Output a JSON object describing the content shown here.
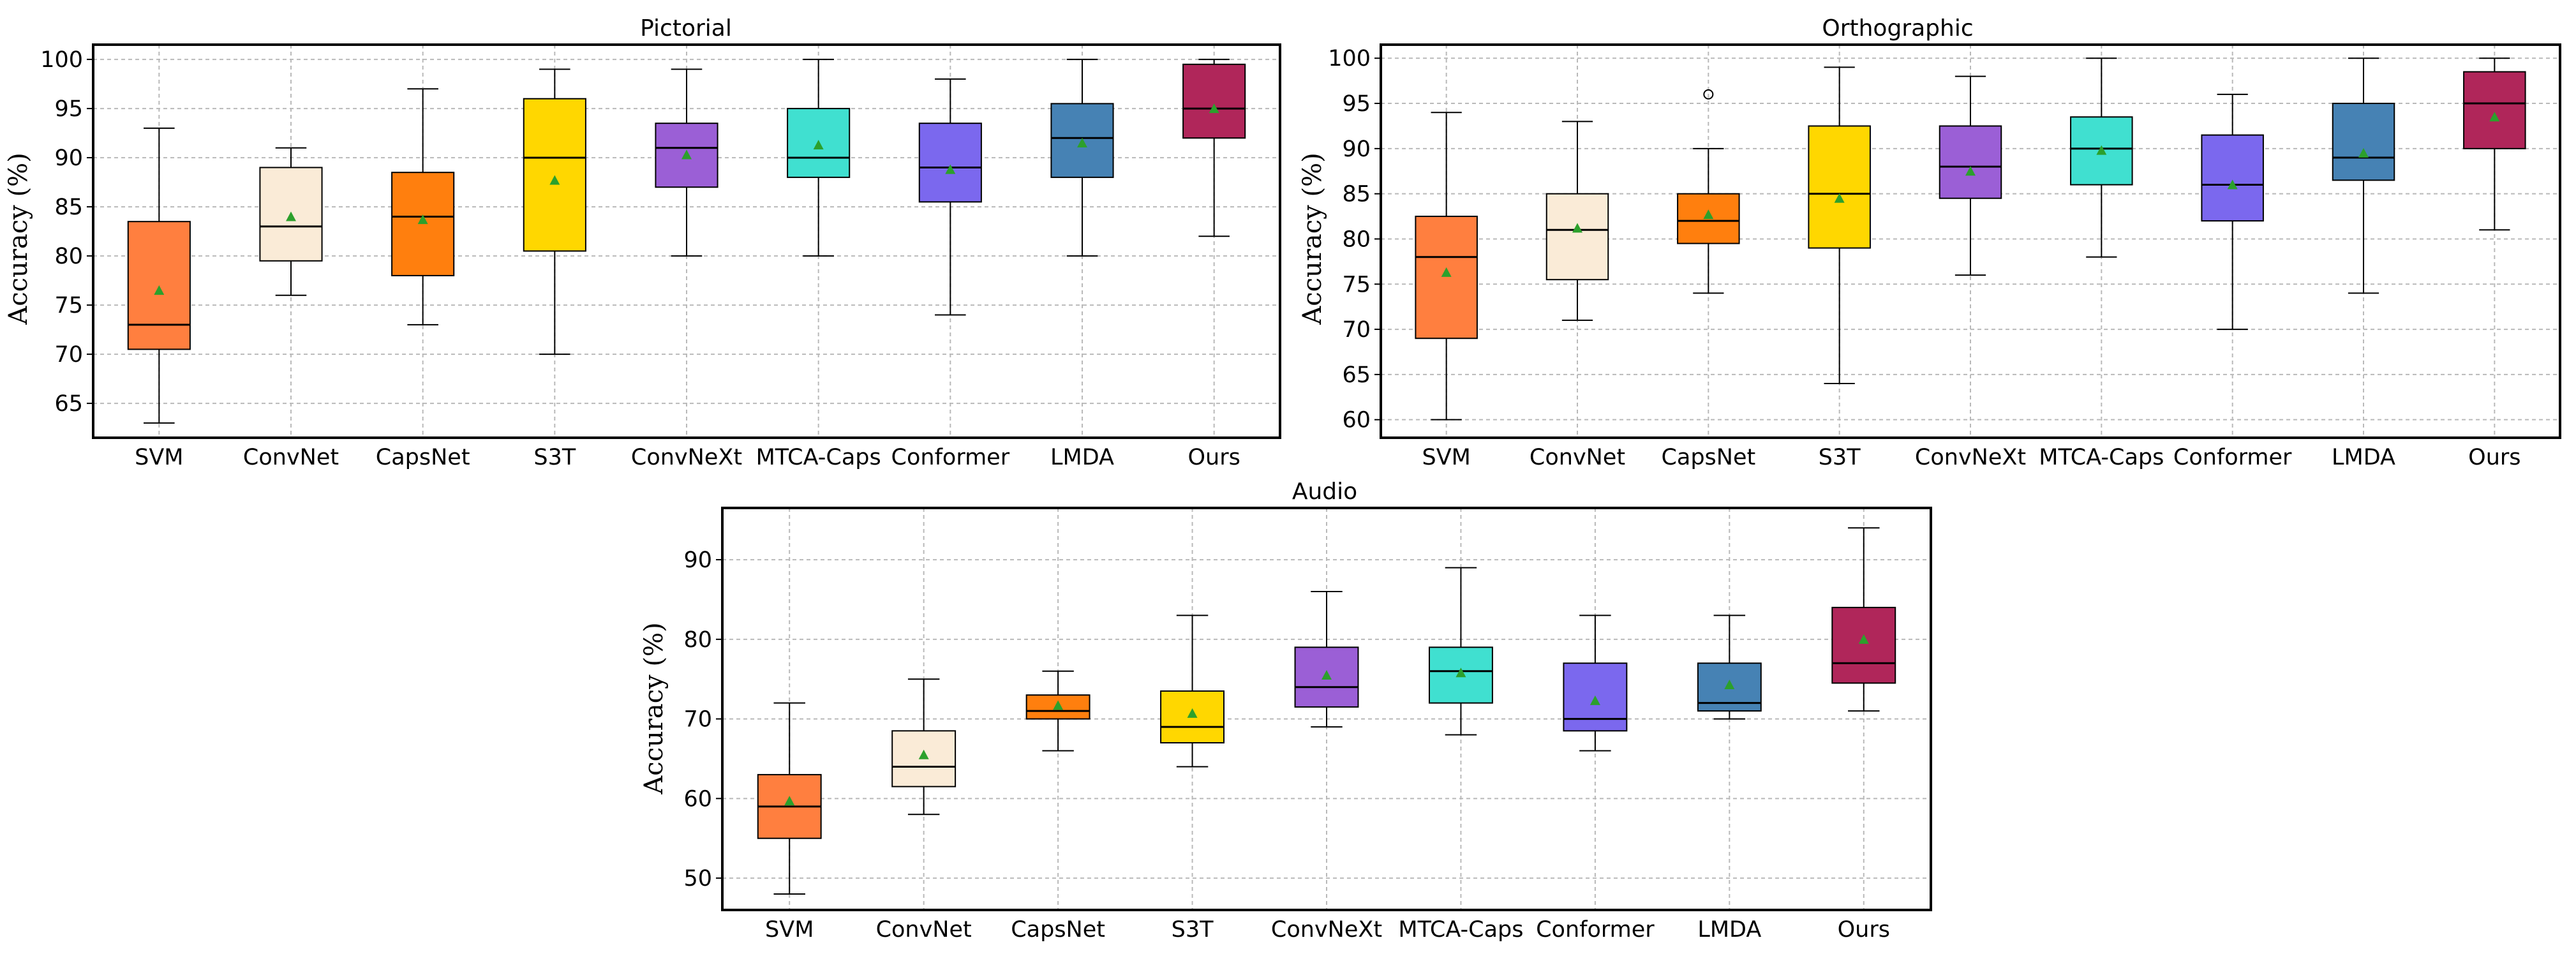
{
  "chart_data": [
    {
      "type": "box",
      "title": "Pictorial",
      "ylabel": "Accuracy (%)",
      "ylim": [
        61.5,
        101.5
      ],
      "yticks": [
        65,
        70,
        75,
        80,
        85,
        90,
        95,
        100
      ],
      "grid": true,
      "categories": [
        "SVM",
        "ConvNet",
        "CapsNet",
        "S3T",
        "ConvNeXt",
        "MTCA-Caps",
        "Conformer",
        "LMDA",
        "Ours"
      ],
      "boxes": [
        {
          "whislo": 63,
          "q1": 70.5,
          "med": 73,
          "q3": 83.5,
          "whishi": 93,
          "mean": 76.5,
          "fliers": []
        },
        {
          "whislo": 76,
          "q1": 79.5,
          "med": 83,
          "q3": 89,
          "whishi": 91,
          "mean": 84,
          "fliers": []
        },
        {
          "whislo": 73,
          "q1": 78,
          "med": 84,
          "q3": 88.5,
          "whishi": 97,
          "mean": 83.7,
          "fliers": []
        },
        {
          "whislo": 70,
          "q1": 80.5,
          "med": 90,
          "q3": 96,
          "whishi": 99,
          "mean": 87.7,
          "fliers": []
        },
        {
          "whislo": 80,
          "q1": 87,
          "med": 91,
          "q3": 93.5,
          "whishi": 99,
          "mean": 90.3,
          "fliers": []
        },
        {
          "whislo": 80,
          "q1": 88,
          "med": 90,
          "q3": 95,
          "whishi": 100,
          "mean": 91.3,
          "fliers": []
        },
        {
          "whislo": 74,
          "q1": 85.5,
          "med": 89,
          "q3": 93.5,
          "whishi": 98,
          "mean": 88.8,
          "fliers": []
        },
        {
          "whislo": 80,
          "q1": 88,
          "med": 92,
          "q3": 95.5,
          "whishi": 100,
          "mean": 91.5,
          "fliers": []
        },
        {
          "whislo": 82,
          "q1": 92,
          "med": 95,
          "q3": 99.5,
          "whishi": 100,
          "mean": 95,
          "fliers": []
        }
      ]
    },
    {
      "type": "box",
      "title": "Orthographic",
      "ylabel": "Accuracy (%)",
      "ylim": [
        58,
        101.5
      ],
      "yticks": [
        60,
        65,
        70,
        75,
        80,
        85,
        90,
        95,
        100
      ],
      "grid": true,
      "categories": [
        "SVM",
        "ConvNet",
        "CapsNet",
        "S3T",
        "ConvNeXt",
        "MTCA-Caps",
        "Conformer",
        "LMDA",
        "Ours"
      ],
      "boxes": [
        {
          "whislo": 60,
          "q1": 69,
          "med": 78,
          "q3": 82.5,
          "whishi": 94,
          "mean": 76.3,
          "fliers": []
        },
        {
          "whislo": 71,
          "q1": 75.5,
          "med": 81,
          "q3": 85,
          "whishi": 93,
          "mean": 81.2,
          "fliers": []
        },
        {
          "whislo": 74,
          "q1": 79.5,
          "med": 82,
          "q3": 85,
          "whishi": 90,
          "mean": 82.7,
          "fliers": [
            96
          ]
        },
        {
          "whislo": 64,
          "q1": 79,
          "med": 85,
          "q3": 92.5,
          "whishi": 99,
          "mean": 84.5,
          "fliers": []
        },
        {
          "whislo": 76,
          "q1": 84.5,
          "med": 88,
          "q3": 92.5,
          "whishi": 98,
          "mean": 87.5,
          "fliers": []
        },
        {
          "whislo": 78,
          "q1": 86,
          "med": 90,
          "q3": 93.5,
          "whishi": 100,
          "mean": 89.8,
          "fliers": []
        },
        {
          "whislo": 70,
          "q1": 82,
          "med": 86,
          "q3": 91.5,
          "whishi": 96,
          "mean": 86,
          "fliers": []
        },
        {
          "whislo": 74,
          "q1": 86.5,
          "med": 89,
          "q3": 95,
          "whishi": 100,
          "mean": 89.5,
          "fliers": []
        },
        {
          "whislo": 81,
          "q1": 90,
          "med": 95,
          "q3": 98.5,
          "whishi": 100,
          "mean": 93.5,
          "fliers": []
        }
      ]
    },
    {
      "type": "box",
      "title": "Audio",
      "ylabel": "Accuracy (%)",
      "ylim": [
        46,
        96.5
      ],
      "yticks": [
        50,
        60,
        70,
        80,
        90
      ],
      "grid": true,
      "categories": [
        "SVM",
        "ConvNet",
        "CapsNet",
        "S3T",
        "ConvNeXt",
        "MTCA-Caps",
        "Conformer",
        "LMDA",
        "Ours"
      ],
      "boxes": [
        {
          "whislo": 48,
          "q1": 55,
          "med": 59,
          "q3": 63,
          "whishi": 72,
          "mean": 59.7,
          "fliers": []
        },
        {
          "whislo": 58,
          "q1": 61.5,
          "med": 64,
          "q3": 68.5,
          "whishi": 75,
          "mean": 65.5,
          "fliers": []
        },
        {
          "whislo": 66,
          "q1": 70,
          "med": 71,
          "q3": 73,
          "whishi": 76,
          "mean": 71.7,
          "fliers": []
        },
        {
          "whislo": 64,
          "q1": 67,
          "med": 69,
          "q3": 73.5,
          "whishi": 83,
          "mean": 70.7,
          "fliers": []
        },
        {
          "whislo": 69,
          "q1": 71.5,
          "med": 74,
          "q3": 79,
          "whishi": 86,
          "mean": 75.5,
          "fliers": []
        },
        {
          "whislo": 68,
          "q1": 72,
          "med": 76,
          "q3": 79,
          "whishi": 89,
          "mean": 75.8,
          "fliers": []
        },
        {
          "whislo": 66,
          "q1": 68.5,
          "med": 70,
          "q3": 77,
          "whishi": 83,
          "mean": 72.3,
          "fliers": []
        },
        {
          "whislo": 70,
          "q1": 71,
          "med": 72,
          "q3": 77,
          "whishi": 83,
          "mean": 74.3,
          "fliers": []
        },
        {
          "whislo": 71,
          "q1": 74.5,
          "med": 77,
          "q3": 84,
          "whishi": 94,
          "mean": 80,
          "fliers": []
        }
      ]
    }
  ],
  "colors": {
    "boxes": [
      "#ff7f3f",
      "#faebd7",
      "#ff7f0e",
      "#ffd700",
      "#9b5fd6",
      "#40e0d0",
      "#7b68ee",
      "#4682b4",
      "#b0265a"
    ],
    "mean_marker": "#2ca02c"
  }
}
